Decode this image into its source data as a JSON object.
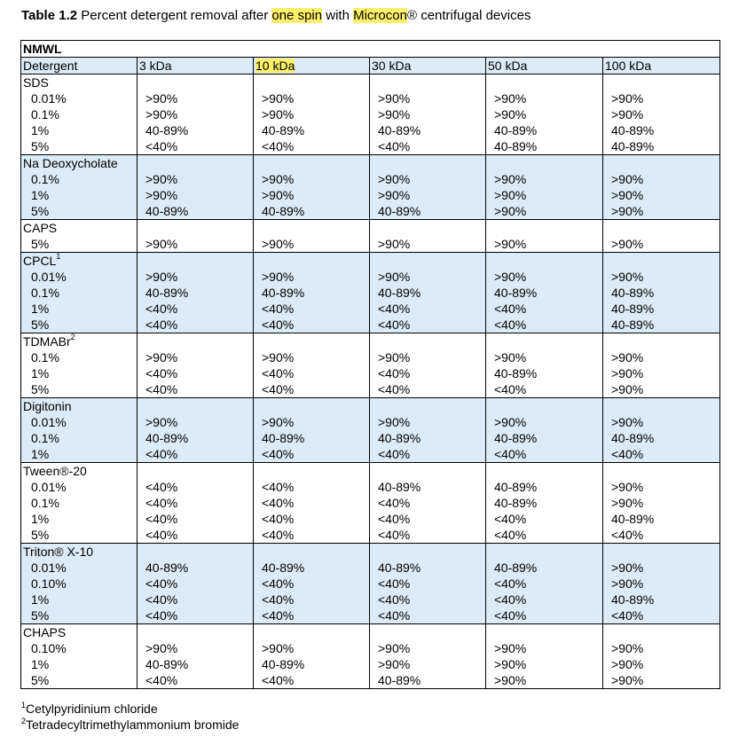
{
  "caption": {
    "label": "Table 1.2",
    "pre": " Percent detergent removal after ",
    "hl1": "one spin",
    "mid": " with ",
    "hl2": "Microcon",
    "post": "® centrifugal devices"
  },
  "table": {
    "title": "NMWL",
    "corner": "Detergent",
    "columns": [
      "3 kDa",
      "10 kDa",
      "30 kDa",
      "50 kDa",
      "100 kDa"
    ],
    "highlighted_column": 1,
    "groups": [
      {
        "name": "SDS",
        "sup": "",
        "shaded": false,
        "concentrations": [
          "0.01%",
          "0.1%",
          "1%",
          "5%"
        ],
        "values": [
          [
            ">90%",
            ">90%",
            "40-89%",
            "<40%"
          ],
          [
            ">90%",
            ">90%",
            "40-89%",
            "<40%"
          ],
          [
            ">90%",
            ">90%",
            "40-89%",
            "<40%"
          ],
          [
            ">90%",
            ">90%",
            "40-89%",
            "40-89%"
          ],
          [
            ">90%",
            ">90%",
            "40-89%",
            "40-89%"
          ]
        ]
      },
      {
        "name": "Na Deoxycholate",
        "sup": "",
        "shaded": true,
        "concentrations": [
          "0.1%",
          "1%",
          "5%"
        ],
        "values": [
          [
            ">90%",
            ">90%",
            "40-89%"
          ],
          [
            ">90%",
            ">90%",
            "40-89%"
          ],
          [
            ">90%",
            ">90%",
            "40-89%"
          ],
          [
            ">90%",
            ">90%",
            ">90%"
          ],
          [
            ">90%",
            ">90%",
            ">90%"
          ]
        ]
      },
      {
        "name": "CAPS",
        "sup": "",
        "shaded": false,
        "concentrations": [
          "5%"
        ],
        "values": [
          [
            ">90%"
          ],
          [
            ">90%"
          ],
          [
            ">90%"
          ],
          [
            ">90%"
          ],
          [
            ">90%"
          ]
        ]
      },
      {
        "name": "CPCL",
        "sup": "1",
        "shaded": true,
        "concentrations": [
          "0.01%",
          "0.1%",
          "1%",
          "5%"
        ],
        "values": [
          [
            ">90%",
            "40-89%",
            "<40%",
            "<40%"
          ],
          [
            ">90%",
            "40-89%",
            "<40%",
            "<40%"
          ],
          [
            ">90%",
            "40-89%",
            "<40%",
            "<40%"
          ],
          [
            ">90%",
            "40-89%",
            "<40%",
            "<40%"
          ],
          [
            ">90%",
            "40-89%",
            "40-89%",
            "40-89%"
          ]
        ]
      },
      {
        "name": "TDMABr",
        "sup": "2",
        "shaded": false,
        "concentrations": [
          "0.1%",
          "1%",
          "5%"
        ],
        "values": [
          [
            ">90%",
            "<40%",
            "<40%"
          ],
          [
            ">90%",
            "<40%",
            "<40%"
          ],
          [
            ">90%",
            "<40%",
            "<40%"
          ],
          [
            ">90%",
            "40-89%",
            "<40%"
          ],
          [
            ">90%",
            ">90%",
            ">90%"
          ]
        ]
      },
      {
        "name": "Digitonin",
        "sup": "",
        "shaded": true,
        "concentrations": [
          "0.01%",
          "0.1%",
          "1%"
        ],
        "values": [
          [
            ">90%",
            "40-89%",
            "<40%"
          ],
          [
            ">90%",
            "40-89%",
            "<40%"
          ],
          [
            ">90%",
            "40-89%",
            "<40%"
          ],
          [
            ">90%",
            "40-89%",
            "<40%"
          ],
          [
            ">90%",
            "40-89%",
            "<40%"
          ]
        ]
      },
      {
        "name": "Tween®-20",
        "sup": "",
        "shaded": false,
        "concentrations": [
          "0.01%",
          "0.1%",
          "1%",
          "5%"
        ],
        "values": [
          [
            "<40%",
            "<40%",
            "<40%",
            "<40%"
          ],
          [
            "<40%",
            "<40%",
            "<40%",
            "<40%"
          ],
          [
            "40-89%",
            "<40%",
            "<40%",
            "<40%"
          ],
          [
            "40-89%",
            "40-89%",
            "<40%",
            "<40%"
          ],
          [
            ">90%",
            ">90%",
            "40-89%",
            "<40%"
          ]
        ]
      },
      {
        "name": "Triton® X-10",
        "sup": "",
        "shaded": true,
        "concentrations": [
          "0.01%",
          "0.10%",
          "1%",
          "5%"
        ],
        "values": [
          [
            "40-89%",
            "<40%",
            "<40%",
            "<40%"
          ],
          [
            "40-89%",
            "<40%",
            "<40%",
            "<40%"
          ],
          [
            "40-89%",
            "<40%",
            "<40%",
            "<40%"
          ],
          [
            "40-89%",
            "<40%",
            "<40%",
            "<40%"
          ],
          [
            ">90%",
            ">90%",
            "40-89%",
            "<40%"
          ]
        ]
      },
      {
        "name": "CHAPS",
        "sup": "",
        "shaded": false,
        "concentrations": [
          "0.10%",
          "1%",
          "5%"
        ],
        "values": [
          [
            ">90%",
            "40-89%",
            "<40%"
          ],
          [
            ">90%",
            "40-89%",
            "<40%"
          ],
          [
            ">90%",
            ">90%",
            "40-89%"
          ],
          [
            ">90%",
            ">90%",
            ">90%"
          ],
          [
            ">90%",
            ">90%",
            ">90%"
          ]
        ]
      }
    ]
  },
  "footnotes": [
    {
      "mark": "1",
      "text": "Cetylpyridinium chloride"
    },
    {
      "mark": "2",
      "text": "Tetradecyltrimethylammonium bromide"
    }
  ]
}
